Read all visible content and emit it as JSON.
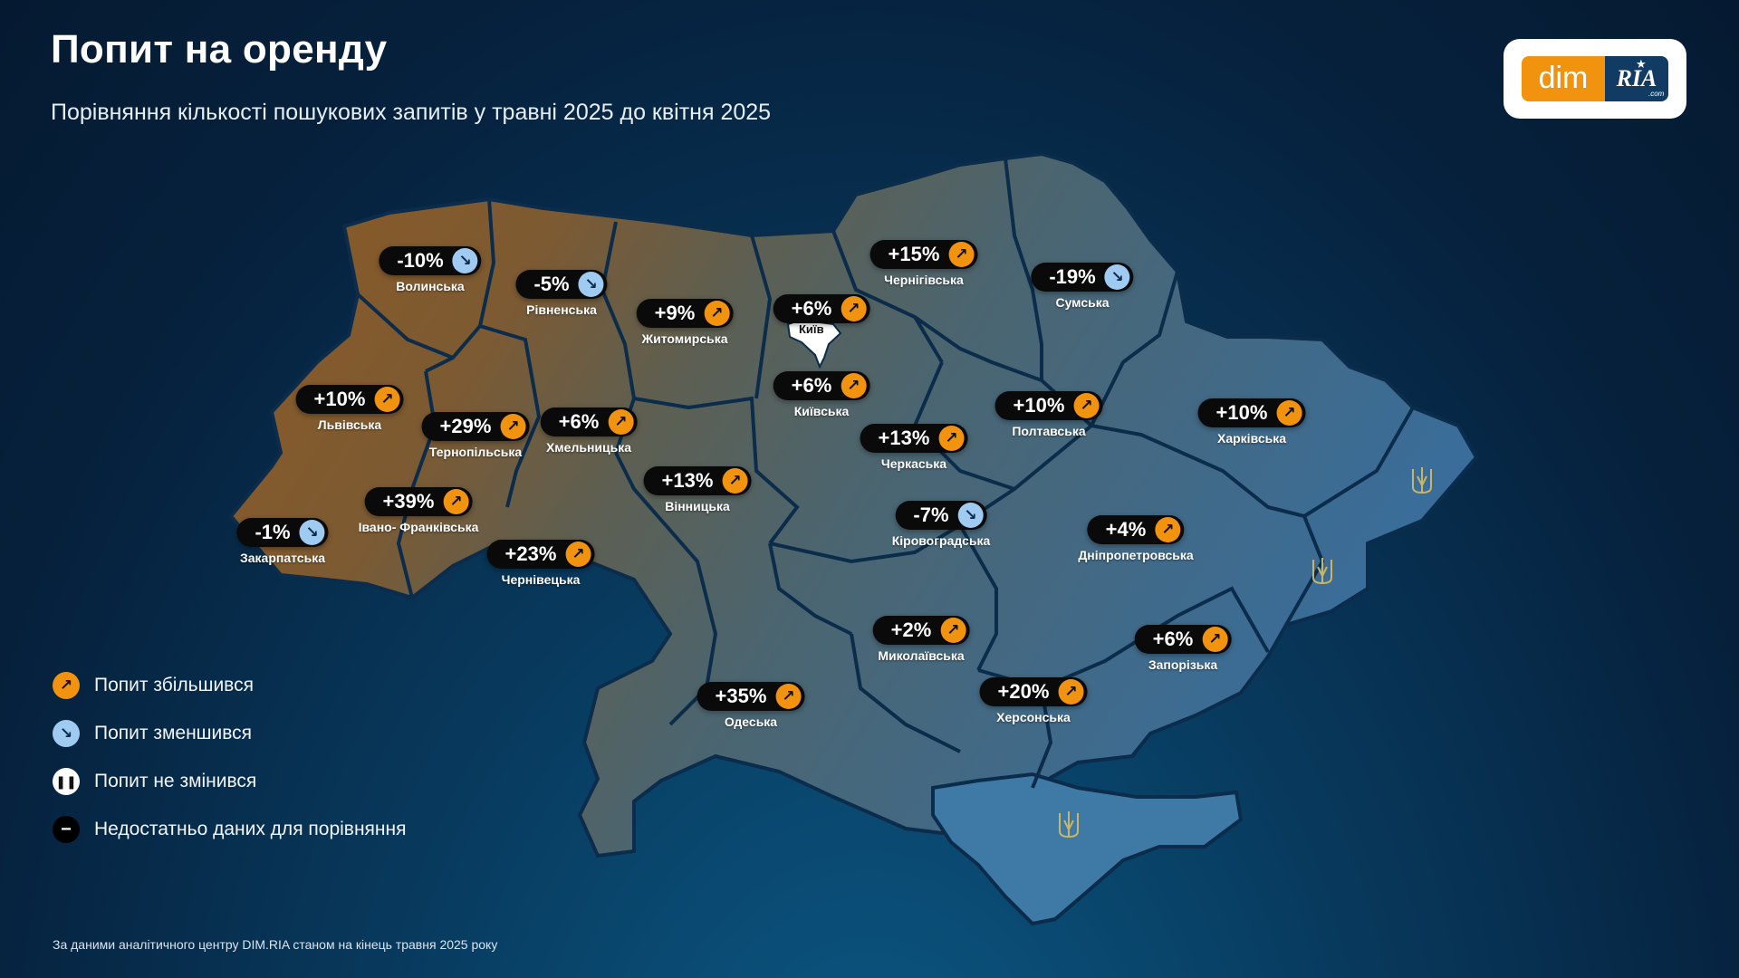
{
  "title": "Попит на оренду",
  "subtitle": "Порівняння кількості пошукових запитів у травні 2025 до квітня 2025",
  "logo": {
    "left": "dim",
    "right": "RIA",
    "suffix": ".com"
  },
  "kyiv_city_label": "Київ",
  "regions": [
    {
      "name": "Волинська",
      "value": "-10%",
      "trend": "down"
    },
    {
      "name": "Рівненська",
      "value": "-5%",
      "trend": "down"
    },
    {
      "name": "Житомирська",
      "value": "+9%",
      "trend": "up"
    },
    {
      "name": "Київ",
      "value": "+6%",
      "trend": "up"
    },
    {
      "name": "Чернігівська",
      "value": "+15%",
      "trend": "up"
    },
    {
      "name": "Сумська",
      "value": "-19%",
      "trend": "down"
    },
    {
      "name": "Львівська",
      "value": "+10%",
      "trend": "up"
    },
    {
      "name": "Тернопільська",
      "value": "+29%",
      "trend": "up"
    },
    {
      "name": "Хмельницька",
      "value": "+6%",
      "trend": "up"
    },
    {
      "name": "Київська",
      "value": "+6%",
      "trend": "up"
    },
    {
      "name": "Черкаська",
      "value": "+13%",
      "trend": "up"
    },
    {
      "name": "Полтавська",
      "value": "+10%",
      "trend": "up"
    },
    {
      "name": "Харківська",
      "value": "+10%",
      "trend": "up"
    },
    {
      "name": "Вінницька",
      "value": "+13%",
      "trend": "up"
    },
    {
      "name": "Івано- Франківська",
      "value": "+39%",
      "trend": "up"
    },
    {
      "name": "Закарпатська",
      "value": "-1%",
      "trend": "down"
    },
    {
      "name": "Чернівецька",
      "value": "+23%",
      "trend": "up"
    },
    {
      "name": "Кіровоградська",
      "value": "-7%",
      "trend": "down"
    },
    {
      "name": "Дніпропетровська",
      "value": "+4%",
      "trend": "up"
    },
    {
      "name": "Миколаївська",
      "value": "+2%",
      "trend": "up"
    },
    {
      "name": "Запорізька",
      "value": "+6%",
      "trend": "up"
    },
    {
      "name": "Одеська",
      "value": "+35%",
      "trend": "up"
    },
    {
      "name": "Херсонська",
      "value": "+20%",
      "trend": "up"
    }
  ],
  "legend": [
    {
      "label": "Попит збільшився",
      "icon": "arrow-up-right-icon"
    },
    {
      "label": "Попит зменшився",
      "icon": "arrow-down-right-icon"
    },
    {
      "label": "Попит не змінився",
      "icon": "pause-icon"
    },
    {
      "label": "Недостатньо даних для порівняння",
      "icon": "minus-icon"
    }
  ],
  "source": "За даними аналітичного центру DIM.RIA станом на кінець травня 2025 року",
  "colors": {
    "increase": "#f29310",
    "decrease": "#9fcbf2",
    "west_region": "#8a5a25",
    "east_region": "#3f6f96"
  }
}
